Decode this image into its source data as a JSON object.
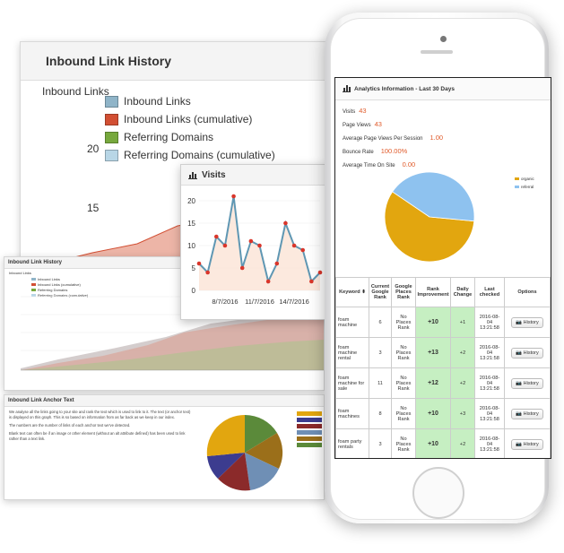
{
  "colors": {
    "inbound": "#8fb4c8",
    "cumulative": "#d24f33",
    "referring": "#77a83d",
    "referring_cumulative": "#b8d6e6",
    "visits_line": "#5f97b3",
    "visits_point": "#d9362b",
    "pie_organic": "#e2a60f",
    "pie_referral": "#8ec2ef"
  },
  "inbound_panel": {
    "title": "Inbound Link History",
    "y_label": "Inbound Links",
    "legend": [
      "Inbound Links",
      "Inbound Links (cumulative)",
      "Referring Domains",
      "Referring Domains (cumulative)"
    ],
    "y_ticks": [
      "20",
      "15"
    ]
  },
  "visits_card": {
    "title": "Visits",
    "icon": "bar-chart-icon"
  },
  "small_panel": {
    "title": "Inbound Link History",
    "y_label": "Inbound Links",
    "legend": [
      "Inbound Links",
      "Inbound Links (cumulative)",
      "Referring Domains",
      "Referring Domains (cumulative)"
    ]
  },
  "anchor_panel": {
    "title": "Inbound Link Anchor Text",
    "para1": "We analyse all the links going to your site and rank the text which is used to link to it. The text (or anchor text) is displayed on this graph. This is so based on information from as far back as we keep in our index.",
    "para2": "The numbers are the number of links of each anchor text we've detected.",
    "para3": "Blank text can often be if an image or other element (without an alt attribute defined) has been used to link rather than a text link."
  },
  "analytics": {
    "title": "Analytics Information - Last 30 Days",
    "icon": "bar-chart-icon",
    "stats": [
      {
        "label": "Visits",
        "value": "43"
      },
      {
        "label": "Page Views",
        "value": "43"
      },
      {
        "label": "Average Page Views Per Session",
        "value": "1.00"
      },
      {
        "label": "Bounce Rate",
        "value": "100.00%"
      },
      {
        "label": "Average Time On Site",
        "value": "0.00"
      }
    ],
    "pie_legend": [
      "organic",
      "referral"
    ]
  },
  "keywords_table": {
    "headers": [
      "Keyword",
      "Current Google Rank",
      "Google Places Rank",
      "Rank Improvement",
      "Daily Change",
      "Last checked",
      "Options"
    ],
    "rows": [
      {
        "keyword": "foam machine",
        "rank": "6",
        "places": "No Places Rank",
        "improvement": "+10",
        "daily": "+1",
        "checked": "2016-08-04 13:21:58",
        "button": "History"
      },
      {
        "keyword": "foam machine rental",
        "rank": "3",
        "places": "No Places Rank",
        "improvement": "+13",
        "daily": "+2",
        "checked": "2016-08-04 13:21:58",
        "button": "History"
      },
      {
        "keyword": "foam machine for sale",
        "rank": "11",
        "places": "No Places Rank",
        "improvement": "+12",
        "daily": "+2",
        "checked": "2016-08-04 13:21:58",
        "button": "History"
      },
      {
        "keyword": "foam machines",
        "rank": "8",
        "places": "No Places Rank",
        "improvement": "+10",
        "daily": "+3",
        "checked": "2016-08-04 13:21:58",
        "button": "History"
      },
      {
        "keyword": "foam party rentals",
        "rank": "3",
        "places": "No Places Rank",
        "improvement": "+10",
        "daily": "+2",
        "checked": "2016-08-04 13:21:58",
        "button": "History"
      }
    ]
  },
  "chart_data": [
    {
      "type": "line",
      "title": "Visits",
      "x_ticks": [
        "8/7/2016",
        "11/7/2016",
        "14/7/2016"
      ],
      "y_ticks": [
        0,
        5,
        10,
        15,
        20
      ],
      "ylim": [
        0,
        22
      ],
      "values": [
        6,
        4,
        12,
        10,
        21,
        5,
        11,
        10,
        2,
        6,
        15,
        10,
        9,
        2,
        4
      ]
    },
    {
      "type": "pie",
      "title": "Analytics Information - Last 30 Days",
      "labels": [
        "organic",
        "referral"
      ],
      "values": [
        58,
        42
      ]
    }
  ]
}
